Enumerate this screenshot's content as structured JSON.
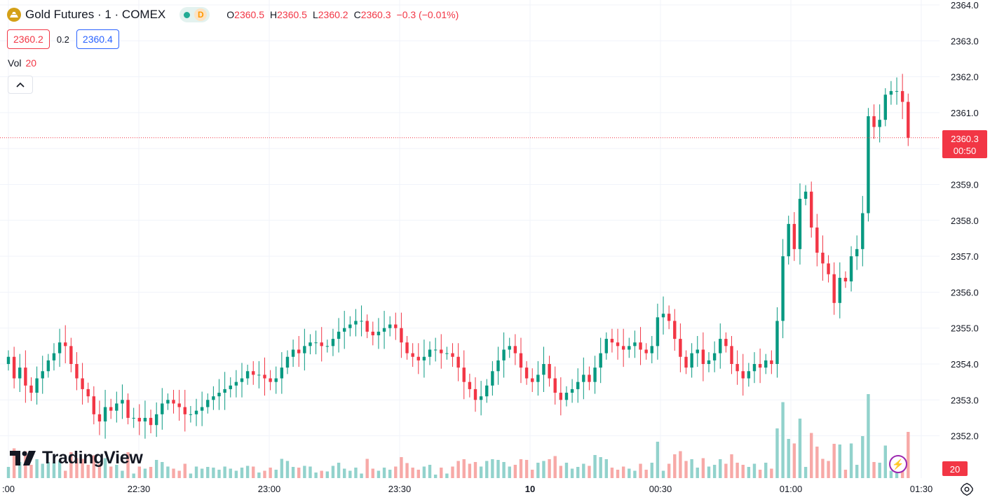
{
  "legend": {
    "symbol_title": "Gold Futures · 1 · COMEX",
    "delayed_badge": "D",
    "open_label": "O",
    "open_value": "2360.5",
    "high_label": "H",
    "high_value": "2360.5",
    "low_label": "L",
    "low_value": "2360.2",
    "close_label": "C",
    "close_value": "2360.3",
    "change": "−0.3 (−0.01%)"
  },
  "quote": {
    "sell": "2360.2",
    "spread": "0.2",
    "buy": "2360.4"
  },
  "volume_legend": {
    "label": "Vol",
    "value": "20"
  },
  "price_axis": {
    "ticks": [
      "2352.0",
      "2353.0",
      "2354.0",
      "2355.0",
      "2356.0",
      "2357.0",
      "2358.0",
      "2359.0",
      "2360.0",
      "2361.0",
      "2362.0",
      "2363.0",
      "2364.0"
    ],
    "last_price_label": "2360.3",
    "countdown_label": "00:50",
    "volume_label": "20"
  },
  "time_axis": {
    "ticks": [
      ":00",
      "22:30",
      "23:00",
      "23:30",
      "10",
      "00:30",
      "01:00",
      "01:30"
    ]
  },
  "watermark": {
    "text": "TradingView"
  },
  "colors": {
    "up": "#089981",
    "down": "#f23645",
    "vol_up": "#92d2cc",
    "vol_down": "#f7a9a7",
    "grid": "#f0f3fa",
    "price_line": "#f23645"
  },
  "chart_data": {
    "type": "candlestick",
    "title": "Gold Futures · 1 · COMEX",
    "interval": "1 minute",
    "x_range": [
      "22:00",
      "01:30"
    ],
    "ylim": [
      2351.0,
      2364.0
    ],
    "last_price": 2360.3,
    "price_line_dotted": true,
    "grid": true,
    "series": [
      {
        "name": "price",
        "x_start": "22:00",
        "x_end": "01:22",
        "close": [
          2354.2,
          2353.6,
          2353.9,
          2353.4,
          2353.2,
          2353.6,
          2353.8,
          2354.1,
          2354.3,
          2354.6,
          2354.5,
          2354.0,
          2353.6,
          2353.3,
          2353.1,
          2352.6,
          2352.4,
          2352.8,
          2352.7,
          2352.9,
          2353.0,
          2352.5,
          2352.5,
          2352.4,
          2352.5,
          2352.3,
          2352.6,
          2352.9,
          2353.0,
          2352.9,
          2352.8,
          2352.6,
          2352.6,
          2352.7,
          2352.8,
          2353.0,
          2353.1,
          2353.2,
          2353.3,
          2353.4,
          2353.5,
          2353.6,
          2353.8,
          2353.7,
          2353.7,
          2353.6,
          2353.5,
          2353.6,
          2353.9,
          2354.2,
          2354.4,
          2354.3,
          2354.5,
          2354.6,
          2354.6,
          2354.5,
          2354.5,
          2354.7,
          2354.9,
          2355.0,
          2355.1,
          2355.2,
          2355.2,
          2354.9,
          2354.8,
          2354.9,
          2355.0,
          2355.1,
          2355.0,
          2354.6,
          2354.3,
          2354.2,
          2354.1,
          2354.2,
          2354.4,
          2354.4,
          2354.3,
          2354.3,
          2354.2,
          2353.9,
          2353.5,
          2353.3,
          2353.0,
          2353.1,
          2353.4,
          2353.8,
          2354.1,
          2354.4,
          2354.5,
          2354.3,
          2353.9,
          2353.6,
          2353.5,
          2353.7,
          2354.0,
          2353.6,
          2353.2,
          2353.0,
          2353.2,
          2353.3,
          2353.5,
          2353.7,
          2353.5,
          2353.9,
          2354.3,
          2354.7,
          2354.6,
          2354.5,
          2354.4,
          2354.5,
          2354.6,
          2354.4,
          2354.3,
          2354.5,
          2355.3,
          2355.4,
          2355.2,
          2354.7,
          2354.2,
          2353.9,
          2354.3,
          2354.4,
          2354.0,
          2354.1,
          2354.3,
          2354.7,
          2354.5,
          2354.0,
          2353.8,
          2353.6,
          2353.8,
          2354.0,
          2353.9,
          2354.1,
          2354.0,
          2355.2,
          2357.0,
          2357.9,
          2357.2,
          2358.6,
          2358.8,
          2357.8,
          2357.1,
          2356.8,
          2356.5,
          2355.7,
          2356.4,
          2356.3,
          2357.0,
          2357.2,
          2358.2,
          2360.9,
          2360.6,
          2360.8,
          2361.5,
          2361.6,
          2361.6,
          2361.3,
          2360.3
        ]
      },
      {
        "name": "volume",
        "values_relative_hint": "volume spikes near 00:20, 01:04 and 01:16-01:18; mostly low elsewhere"
      }
    ]
  }
}
